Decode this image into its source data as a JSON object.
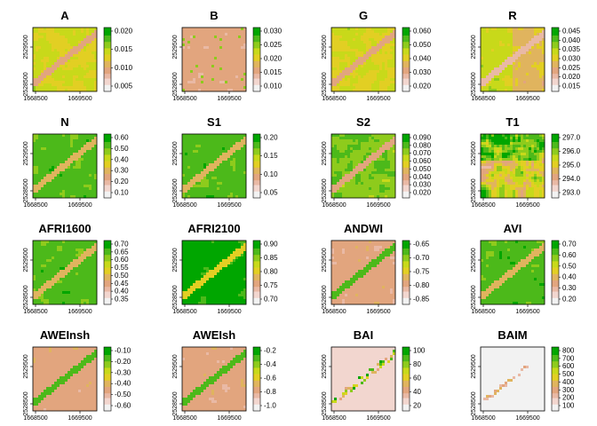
{
  "chart_data": [
    {
      "type": "heatmap",
      "title": "A",
      "palette": "terrain",
      "style": "mixed",
      "seed": 11,
      "legend_ticks": [
        "0.020",
        "0.015",
        "0.010",
        "0.005"
      ],
      "x_ticks": [
        "1668500",
        "1669500"
      ],
      "y_ticks": [
        "2528500",
        "2529500"
      ]
    },
    {
      "type": "heatmap",
      "title": "B",
      "palette": "terrain",
      "style": "pink",
      "seed": 23,
      "legend_ticks": [
        "0.030",
        "0.025",
        "0.020",
        "0.015",
        "0.010"
      ],
      "x_ticks": [
        "1668500",
        "1669500"
      ],
      "y_ticks": [
        "2528500",
        "2529500"
      ]
    },
    {
      "type": "heatmap",
      "title": "G",
      "palette": "terrain",
      "style": "mixed",
      "seed": 37,
      "legend_ticks": [
        "0.060",
        "0.050",
        "0.040",
        "0.030",
        "0.020"
      ],
      "x_ticks": [
        "1668500",
        "1669500"
      ],
      "y_ticks": [
        "2528500",
        "2529500"
      ]
    },
    {
      "type": "heatmap",
      "title": "R",
      "palette": "terrain",
      "style": "pinkmix",
      "seed": 41,
      "legend_ticks": [
        "0.045",
        "0.040",
        "0.035",
        "0.030",
        "0.025",
        "0.020",
        "0.015"
      ],
      "x_ticks": [
        "1668500",
        "1669500"
      ],
      "y_ticks": [
        "2528500",
        "2529500"
      ]
    },
    {
      "type": "heatmap",
      "title": "N",
      "palette": "terrain",
      "style": "green",
      "seed": 53,
      "legend_ticks": [
        "0.60",
        "0.50",
        "0.40",
        "0.30",
        "0.20",
        "0.10"
      ],
      "x_ticks": [
        "1668500",
        "1669500"
      ],
      "y_ticks": [
        "2528500",
        "2529500"
      ]
    },
    {
      "type": "heatmap",
      "title": "S1",
      "palette": "terrain",
      "style": "green",
      "seed": 61,
      "legend_ticks": [
        "0.20",
        "0.15",
        "0.10",
        "0.05"
      ],
      "x_ticks": [
        "1668500",
        "1669500"
      ],
      "y_ticks": [
        "2528500",
        "2529500"
      ]
    },
    {
      "type": "heatmap",
      "title": "S2",
      "palette": "terrain",
      "style": "greenmix",
      "seed": 73,
      "legend_ticks": [
        "0.090",
        "0.080",
        "0.070",
        "0.060",
        "0.050",
        "0.040",
        "0.030",
        "0.020"
      ],
      "x_ticks": [
        "1668500",
        "1669500"
      ],
      "y_ticks": [
        "2528500",
        "2529500"
      ]
    },
    {
      "type": "heatmap",
      "title": "T1",
      "palette": "terrain",
      "style": "smooth",
      "seed": 89,
      "legend_ticks": [
        "297.0",
        "296.0",
        "295.0",
        "294.0",
        "293.0"
      ],
      "x_ticks": [
        "1668500",
        "1669500"
      ],
      "y_ticks": [
        "2528500",
        "2529500"
      ]
    },
    {
      "type": "heatmap",
      "title": "AFRI1600",
      "palette": "terrain",
      "style": "green",
      "seed": 97,
      "legend_ticks": [
        "0.70",
        "0.65",
        "0.60",
        "0.55",
        "0.50",
        "0.45",
        "0.40",
        "0.35"
      ],
      "x_ticks": [
        "1668500",
        "1669500"
      ],
      "y_ticks": [
        "2528500",
        "2529500"
      ]
    },
    {
      "type": "heatmap",
      "title": "AFRI2100",
      "palette": "terrain",
      "style": "greenriver",
      "seed": 101,
      "legend_ticks": [
        "0.90",
        "0.85",
        "0.80",
        "0.75",
        "0.70"
      ],
      "x_ticks": [
        "1668500",
        "1669500"
      ],
      "y_ticks": [
        "2528500",
        "2529500"
      ]
    },
    {
      "type": "heatmap",
      "title": "ANDWI",
      "palette": "terrain",
      "style": "pinkriver",
      "seed": 107,
      "legend_ticks": [
        "-0.65",
        "-0.70",
        "-0.75",
        "-0.80",
        "-0.85"
      ],
      "x_ticks": [
        "1668500",
        "1669500"
      ],
      "y_ticks": [
        "2528500",
        "2529500"
      ]
    },
    {
      "type": "heatmap",
      "title": "AVI",
      "palette": "terrain",
      "style": "green",
      "seed": 113,
      "legend_ticks": [
        "0.70",
        "0.60",
        "0.50",
        "0.40",
        "0.30",
        "0.20"
      ],
      "x_ticks": [
        "1668500",
        "1669500"
      ],
      "y_ticks": [
        "2528500",
        "2529500"
      ]
    },
    {
      "type": "heatmap",
      "title": "AWEInsh",
      "palette": "terrain",
      "style": "pinkriver",
      "seed": 127,
      "legend_ticks": [
        "-0.10",
        "-0.20",
        "-0.30",
        "-0.40",
        "-0.50",
        "-0.60"
      ],
      "x_ticks": [
        "1668500",
        "1669500"
      ],
      "y_ticks": [
        "2528500",
        "2529500"
      ]
    },
    {
      "type": "heatmap",
      "title": "AWEIsh",
      "palette": "terrain",
      "style": "pinkriver",
      "seed": 131,
      "legend_ticks": [
        "-0.2",
        "-0.4",
        "-0.6",
        "-0.8",
        "-1.0"
      ],
      "x_ticks": [
        "1668500",
        "1669500"
      ],
      "y_ticks": [
        "2528500",
        "2529500"
      ]
    },
    {
      "type": "heatmap",
      "title": "BAI",
      "palette": "terrain",
      "style": "sparse",
      "seed": 137,
      "legend_ticks": [
        "100",
        "80",
        "60",
        "40",
        "20"
      ],
      "x_ticks": [
        "1668500",
        "1669500"
      ],
      "y_ticks": [
        "2528500",
        "2529500"
      ]
    },
    {
      "type": "heatmap",
      "title": "BAIM",
      "palette": "terrain",
      "style": "verysparse",
      "seed": 139,
      "legend_ticks": [
        "800",
        "700",
        "600",
        "500",
        "400",
        "300",
        "200",
        "100"
      ],
      "x_ticks": [
        "1668500",
        "1669500"
      ],
      "y_ticks": [
        "2528500",
        "2529500"
      ]
    }
  ],
  "colors": {
    "ramp": [
      "#f2f2f2",
      "#f2d6cf",
      "#e9b9a5",
      "#e2a57e",
      "#e0b45e",
      "#e2cf23",
      "#c8d91a",
      "#8ecb1c",
      "#4cb91a",
      "#00a600"
    ]
  }
}
